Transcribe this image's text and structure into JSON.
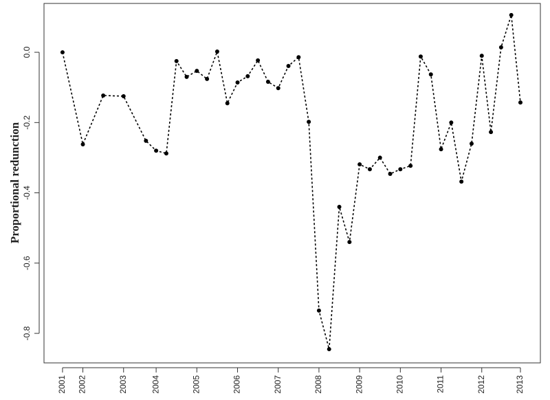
{
  "chart_data": {
    "type": "line",
    "y_label": "Proportional redunction",
    "x": [
      0,
      2,
      4,
      6,
      8.2,
      9.2,
      10.2,
      11.2,
      12.2,
      13.2,
      14.2,
      15.2,
      16.2,
      17.2,
      18.2,
      19.2,
      20.2,
      21.2,
      22.2,
      23.2,
      24.2,
      25.2,
      26.2,
      27.2,
      28.2,
      29.2,
      30.2,
      31.2,
      32.2,
      33.2,
      34.2,
      35.2,
      36.2,
      37.2,
      38.2,
      39.2,
      40.2,
      41.2,
      42.1,
      43.1,
      44.1,
      45
    ],
    "values": [
      0.0,
      -0.262,
      -0.123,
      -0.125,
      -0.252,
      -0.28,
      -0.288,
      -0.025,
      -0.07,
      -0.053,
      -0.076,
      0.002,
      -0.145,
      -0.086,
      -0.068,
      -0.023,
      -0.084,
      -0.102,
      -0.039,
      -0.014,
      -0.198,
      -0.735,
      -0.845,
      -0.44,
      -0.54,
      -0.319,
      -0.333,
      -0.3,
      -0.346,
      -0.333,
      -0.323,
      -0.012,
      -0.063,
      -0.276,
      -0.2,
      -0.368,
      -0.26,
      -0.01,
      -0.227,
      0.014,
      0.106,
      -0.143
    ],
    "color": "#000000",
    "xlim": [
      -1.82,
      46.96
    ],
    "ylim": [
      -0.884,
      0.139
    ],
    "xticks": [
      {
        "value": 0,
        "label": "2001"
      },
      {
        "value": 2,
        "label": "2002"
      },
      {
        "value": 6,
        "label": "2003"
      },
      {
        "value": 9.2,
        "label": "2004"
      },
      {
        "value": 13.2,
        "label": "2005"
      },
      {
        "value": 17.2,
        "label": "2006"
      },
      {
        "value": 21.2,
        "label": "2007"
      },
      {
        "value": 25.2,
        "label": "2008"
      },
      {
        "value": 29.2,
        "label": "2009"
      },
      {
        "value": 33.2,
        "label": "2010"
      },
      {
        "value": 37.2,
        "label": "2011"
      },
      {
        "value": 41.2,
        "label": "2012"
      },
      {
        "value": 45,
        "label": "2013"
      }
    ],
    "yticks": [
      {
        "value": 0,
        "label": "0.0"
      },
      -0.2,
      -0.4,
      -0.6,
      -0.8
    ],
    "grid": false
  }
}
